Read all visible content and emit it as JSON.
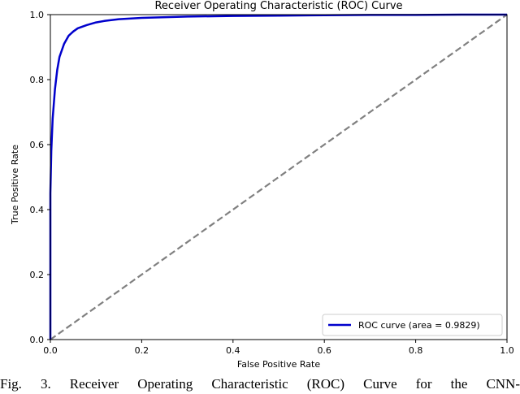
{
  "chart_data": {
    "type": "line",
    "title": "Receiver Operating Characteristic (ROC) Curve",
    "xlabel": "False Positive Rate",
    "ylabel": "True Positive Rate",
    "xlim": [
      0.0,
      1.0
    ],
    "ylim": [
      0.0,
      1.0
    ],
    "x_ticks": [
      "0.0",
      "0.2",
      "0.4",
      "0.6",
      "0.8",
      "1.0"
    ],
    "y_ticks": [
      "0.0",
      "0.2",
      "0.4",
      "0.6",
      "0.8",
      "1.0"
    ],
    "grid": false,
    "legend_position": "lower-right",
    "series": [
      {
        "name": "ROC curve (area = 0.9829)",
        "color": "#0000cc",
        "style": "solid",
        "x": [
          0.0,
          0.0,
          0.002,
          0.005,
          0.01,
          0.015,
          0.02,
          0.03,
          0.04,
          0.05,
          0.06,
          0.08,
          0.1,
          0.12,
          0.15,
          0.2,
          0.3,
          0.4,
          0.5,
          0.6,
          0.7,
          0.8,
          0.9,
          1.0
        ],
        "y": [
          0.0,
          0.45,
          0.58,
          0.68,
          0.77,
          0.83,
          0.87,
          0.91,
          0.935,
          0.948,
          0.958,
          0.968,
          0.976,
          0.981,
          0.986,
          0.99,
          0.994,
          0.996,
          0.997,
          0.998,
          0.999,
          0.999,
          1.0,
          1.0
        ]
      },
      {
        "color": "#808080",
        "style": "dashed",
        "x": [
          0.0,
          1.0
        ],
        "y": [
          0.0,
          1.0
        ]
      }
    ]
  },
  "caption": "Fig. 3.  Receiver Operating Characteristic (ROC) Curve for the CNN-"
}
